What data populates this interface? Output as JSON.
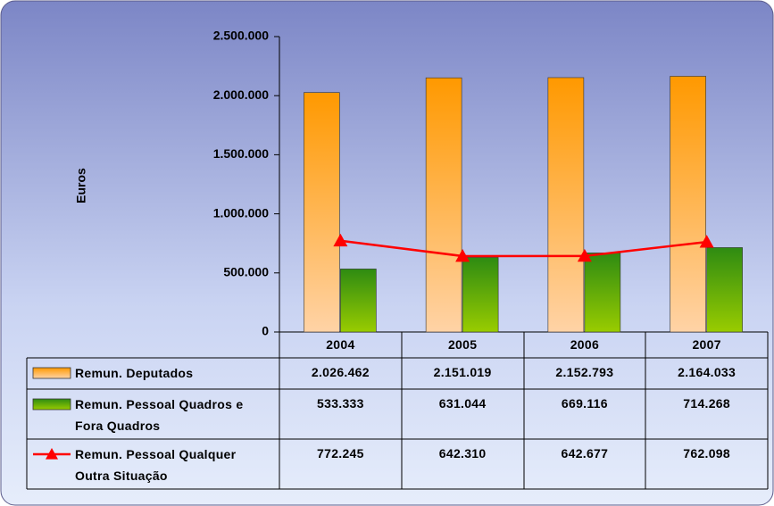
{
  "chart_data": {
    "type": "bar",
    "y_label": "Euros",
    "categories": [
      "2004",
      "2005",
      "2006",
      "2007"
    ],
    "series": [
      {
        "name": "Remun. Deputados",
        "type": "bar",
        "color": "#ff9900",
        "values": [
          2026462,
          2151019,
          2152793,
          2164033
        ],
        "value_labels": [
          "2.026.462",
          "2.151.019",
          "2.152.793",
          "2.164.033"
        ]
      },
      {
        "name": "Remun. Pessoal Quadros e Fora Quadros",
        "type": "bar",
        "color": "#2e8b12",
        "values": [
          533333,
          631044,
          669116,
          714268
        ],
        "value_labels": [
          "533.333",
          "631.044",
          "669.116",
          "714.268"
        ]
      },
      {
        "name": "Remun. Pessoal Qualquer Outra Situação",
        "type": "line",
        "color": "#ff0000",
        "values": [
          772245,
          642310,
          642677,
          762098
        ],
        "value_labels": [
          "772.245",
          "642.310",
          "642.677",
          "762.098"
        ]
      }
    ],
    "ylim": [
      0,
      2500000
    ],
    "yticks": [
      0,
      {
        "value": 500000,
        "label": "500.000"
      },
      {
        "value": 1000000,
        "label": "1.000.000"
      },
      {
        "value": 1500000,
        "label": "1.500.000"
      },
      {
        "value": 2000000,
        "label": "2.000.000"
      },
      {
        "value": 2500000,
        "label": "2.500.000"
      }
    ],
    "data_table": true
  }
}
